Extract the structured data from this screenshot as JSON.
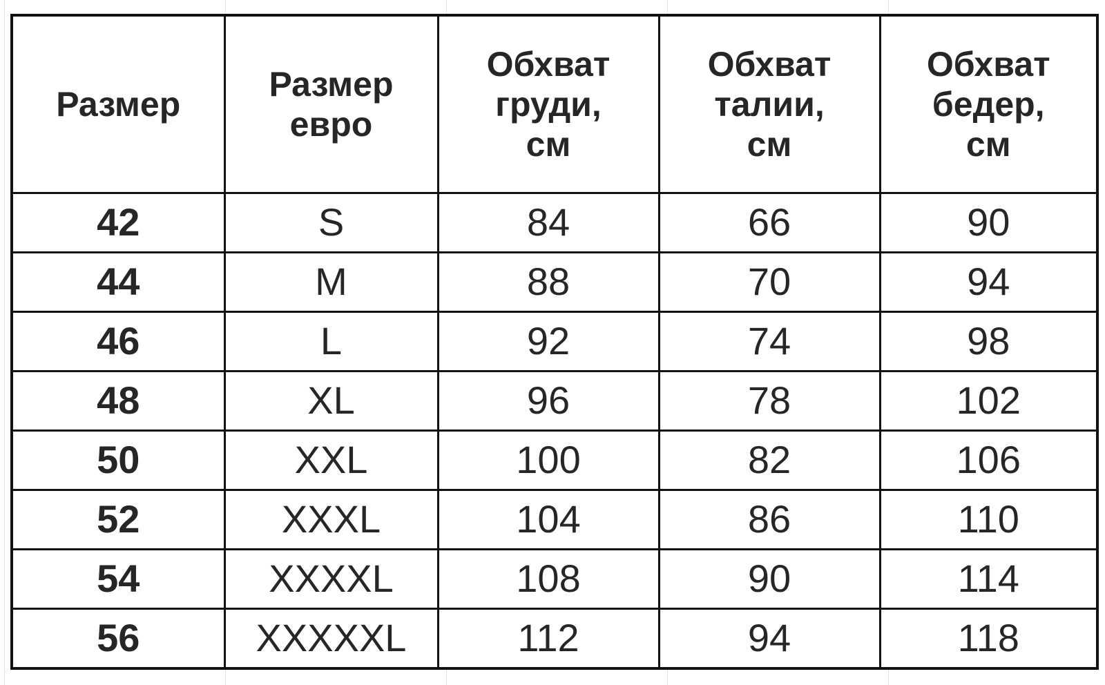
{
  "table": {
    "headers": [
      [
        "Размер"
      ],
      [
        "Размер",
        "евро"
      ],
      [
        "Обхват",
        "груди,",
        "см"
      ],
      [
        "Обхват",
        "талии,",
        "см"
      ],
      [
        "Обхват",
        "бедер,",
        "см"
      ]
    ],
    "rows": [
      [
        "42",
        "S",
        "84",
        "66",
        "90"
      ],
      [
        "44",
        "M",
        "88",
        "70",
        "94"
      ],
      [
        "46",
        "L",
        "92",
        "74",
        "98"
      ],
      [
        "48",
        "XL",
        "96",
        "78",
        "102"
      ],
      [
        "50",
        "XXL",
        "100",
        "82",
        "106"
      ],
      [
        "52",
        "XXXL",
        "104",
        "86",
        "110"
      ],
      [
        "54",
        "XXXXL",
        "108",
        "90",
        "114"
      ],
      [
        "56",
        "XXXXXL",
        "112",
        "94",
        "118"
      ]
    ]
  }
}
